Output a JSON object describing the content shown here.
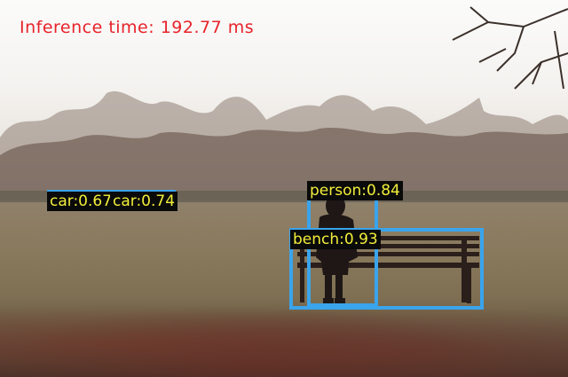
{
  "inference": {
    "text": "Inference time: 192.77 ms",
    "color": "#e8222a"
  },
  "detections": [
    {
      "label": "car:0.67",
      "class": "car",
      "score": 0.67
    },
    {
      "label": "car:0.74",
      "class": "car",
      "score": 0.74
    },
    {
      "label": "person:0.84",
      "class": "person",
      "score": 0.84
    },
    {
      "label": "bench:0.93",
      "class": "bench",
      "score": 0.93
    }
  ],
  "colors": {
    "box": "#3aa4ec",
    "label_text": "#f2ee3a",
    "label_background": "#0a0a0a"
  }
}
